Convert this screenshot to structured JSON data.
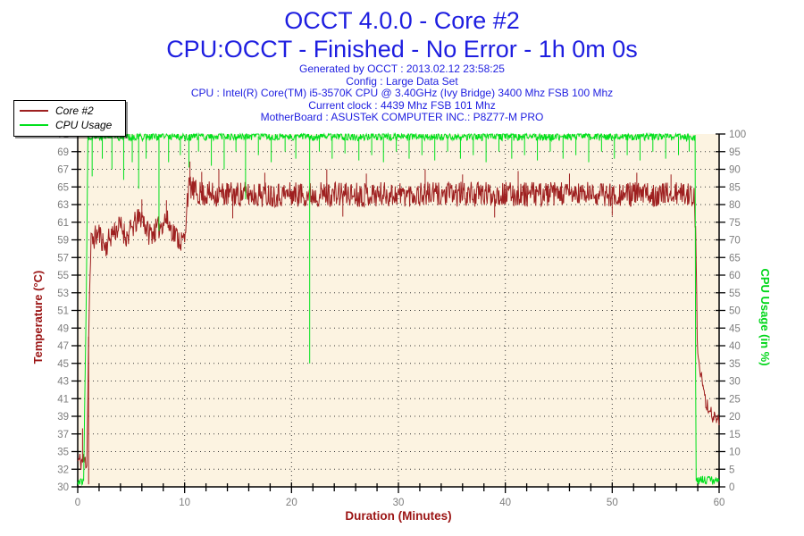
{
  "header": {
    "title": "OCCT 4.0.0 - Core #2",
    "subtitle": "CPU:OCCT - Finished - No Error - 1h 0m 0s",
    "info_lines": [
      "Generated by OCCT : 2013.02.12 23:58:25",
      "Config : Large Data Set",
      "CPU : Intel(R) Core(TM) i5-3570K CPU @ 3.40GHz (Ivy Bridge) 3400 Mhz FSB 100 Mhz",
      "Current clock : 4439 Mhz FSB 101 Mhz",
      "MotherBoard : ASUSTeK COMPUTER INC.: P8Z77-M PRO"
    ],
    "title_color": "#1e1ee0"
  },
  "legend": {
    "items": [
      {
        "label": "Core #2",
        "color": "#9e2020"
      },
      {
        "label": "CPU Usage",
        "color": "#00e01c"
      }
    ]
  },
  "chart_data": {
    "type": "line",
    "title": "OCCT 4.0.0 - Core #2",
    "xlabel": "Duration (Minutes)",
    "x_range": [
      0,
      60
    ],
    "x_tick_labels": [
      "0",
      "10",
      "20",
      "30",
      "40",
      "50",
      "60"
    ],
    "x_minor_step": 2,
    "grid": "dotted",
    "plot_bg": "#fcf3e1",
    "grid_color": "#3c3c3c",
    "tick_label_color": "#7e7e7e",
    "axis_color": "#000000",
    "y_left": {
      "label": "Temperature (°C)",
      "label_color": "#9b1414",
      "range": [
        30,
        71
      ],
      "tick_labels_top_to_bottom": [
        "71",
        "69",
        "67",
        "65",
        "63",
        "61",
        "59",
        "57",
        "55",
        "53",
        "51",
        "49",
        "47",
        "45",
        "43",
        "41",
        "39",
        "37",
        "35",
        "32",
        "30"
      ]
    },
    "y_right": {
      "label": "CPU Usage (in %)",
      "label_color": "#00d61a",
      "range": [
        0,
        100
      ],
      "tick_labels_top_to_bottom": [
        "100",
        "95",
        "90",
        "85",
        "80",
        "75",
        "70",
        "65",
        "60",
        "55",
        "50",
        "45",
        "40",
        "35",
        "30",
        "25",
        "20",
        "15",
        "10",
        "5",
        "0"
      ]
    },
    "series": [
      {
        "name": "Core #2",
        "axis": "left",
        "color": "#9e2020",
        "seed": 11,
        "clamp": [
          30,
          71
        ],
        "base_points": [
          [
            0,
            33
          ],
          [
            0.85,
            33
          ],
          [
            1.05,
            50
          ],
          [
            1.25,
            58.5
          ],
          [
            2,
            59.5
          ],
          [
            2.6,
            57.8
          ],
          [
            3.2,
            59.5
          ],
          [
            4,
            60.3
          ],
          [
            4.6,
            59
          ],
          [
            5.3,
            60.5
          ],
          [
            6,
            61.5
          ],
          [
            6.6,
            59.5
          ],
          [
            7.4,
            59.8
          ],
          [
            8.2,
            61.2
          ],
          [
            9,
            59.5
          ],
          [
            9.7,
            58.5
          ],
          [
            10.05,
            58.8
          ],
          [
            10.2,
            63.5
          ],
          [
            10.5,
            65
          ],
          [
            11,
            64.2
          ],
          [
            12,
            64
          ],
          [
            20,
            64
          ],
          [
            30,
            64
          ],
          [
            40,
            64
          ],
          [
            50,
            64
          ],
          [
            57.7,
            64
          ],
          [
            57.82,
            58
          ],
          [
            57.95,
            47
          ],
          [
            58.1,
            43.8
          ],
          [
            58.35,
            42.5
          ],
          [
            58.55,
            40.5
          ],
          [
            58.9,
            39.5
          ],
          [
            59.2,
            38.6
          ],
          [
            59.6,
            38
          ],
          [
            60,
            37.8
          ]
        ],
        "noise_amp": [
          [
            0,
            1.2
          ],
          [
            0.85,
            1.2
          ],
          [
            1.25,
            1.4
          ],
          [
            9.7,
            1.4
          ],
          [
            10.2,
            1.5
          ],
          [
            57.7,
            1.4
          ],
          [
            58.0,
            1.2
          ],
          [
            58.4,
            1.0
          ],
          [
            60,
            0.7
          ]
        ],
        "spikes": [
          [
            0.45,
            36.8
          ],
          [
            1.02,
            30.3
          ],
          [
            6.0,
            63.4
          ],
          [
            8.3,
            63.3
          ],
          [
            10.5,
            67.8
          ],
          [
            11.6,
            66.6
          ],
          [
            13.2,
            66.9
          ],
          [
            14.5,
            61.2
          ],
          [
            17.5,
            66.5
          ],
          [
            23.3,
            66.9
          ],
          [
            24.8,
            61.4
          ],
          [
            27.0,
            66.4
          ],
          [
            32.5,
            66.9
          ],
          [
            36.0,
            66.3
          ],
          [
            39.0,
            61.3
          ],
          [
            41.2,
            66.7
          ],
          [
            46.0,
            66.4
          ],
          [
            50.0,
            61.5
          ],
          [
            52.3,
            66.5
          ],
          [
            55.5,
            66.3
          ]
        ]
      },
      {
        "name": "CPU Usage",
        "axis": "right",
        "color": "#00e01c",
        "seed": 77,
        "clamp": [
          0,
          100
        ],
        "base_points": [
          [
            0,
            1.5
          ],
          [
            0.55,
            1.5
          ],
          [
            0.8,
            55
          ],
          [
            0.95,
            99.3
          ],
          [
            57.75,
            99.3
          ],
          [
            57.82,
            2
          ],
          [
            58.5,
            1.9
          ],
          [
            60,
            1.8
          ]
        ],
        "noise_amp": [
          [
            0,
            1.0
          ],
          [
            0.55,
            1.0
          ],
          [
            0.95,
            1.2
          ],
          [
            57.75,
            1.2
          ],
          [
            57.82,
            1.2
          ],
          [
            60,
            1.2
          ]
        ],
        "spikes": [
          [
            1.35,
            88
          ],
          [
            2.3,
            93
          ],
          [
            3.2,
            90
          ],
          [
            4.3,
            87
          ],
          [
            5.1,
            92
          ],
          [
            5.7,
            84.5
          ],
          [
            6.4,
            93
          ],
          [
            7.6,
            72.5
          ],
          [
            8.5,
            92
          ],
          [
            9.6,
            94
          ],
          [
            10.4,
            90.5
          ],
          [
            11.3,
            95
          ],
          [
            12.5,
            91
          ],
          [
            13.7,
            90
          ],
          [
            14.8,
            95
          ],
          [
            15.7,
            81.5
          ],
          [
            16.9,
            94
          ],
          [
            18.1,
            92
          ],
          [
            19.4,
            95
          ],
          [
            20.4,
            93
          ],
          [
            21.7,
            35
          ],
          [
            22.6,
            95
          ],
          [
            23.8,
            93
          ],
          [
            25.0,
            94.5
          ],
          [
            26.3,
            92.5
          ],
          [
            27.5,
            94
          ],
          [
            28.6,
            92
          ],
          [
            29.8,
            95
          ],
          [
            31.0,
            93
          ],
          [
            32.2,
            94
          ],
          [
            33.4,
            92.5
          ],
          [
            34.6,
            95
          ],
          [
            35.8,
            93
          ],
          [
            37.0,
            94
          ],
          [
            38.2,
            92
          ],
          [
            39.4,
            95
          ],
          [
            40.6,
            93
          ],
          [
            41.8,
            94
          ],
          [
            43.0,
            92.5
          ],
          [
            44.2,
            95
          ],
          [
            45.4,
            93
          ],
          [
            46.6,
            94
          ],
          [
            47.8,
            92
          ],
          [
            49.0,
            95
          ],
          [
            50.2,
            93
          ],
          [
            51.4,
            94
          ],
          [
            52.6,
            92.5
          ],
          [
            53.8,
            95
          ],
          [
            55.0,
            93
          ],
          [
            56.2,
            94
          ],
          [
            57.2,
            95
          ]
        ]
      }
    ]
  }
}
